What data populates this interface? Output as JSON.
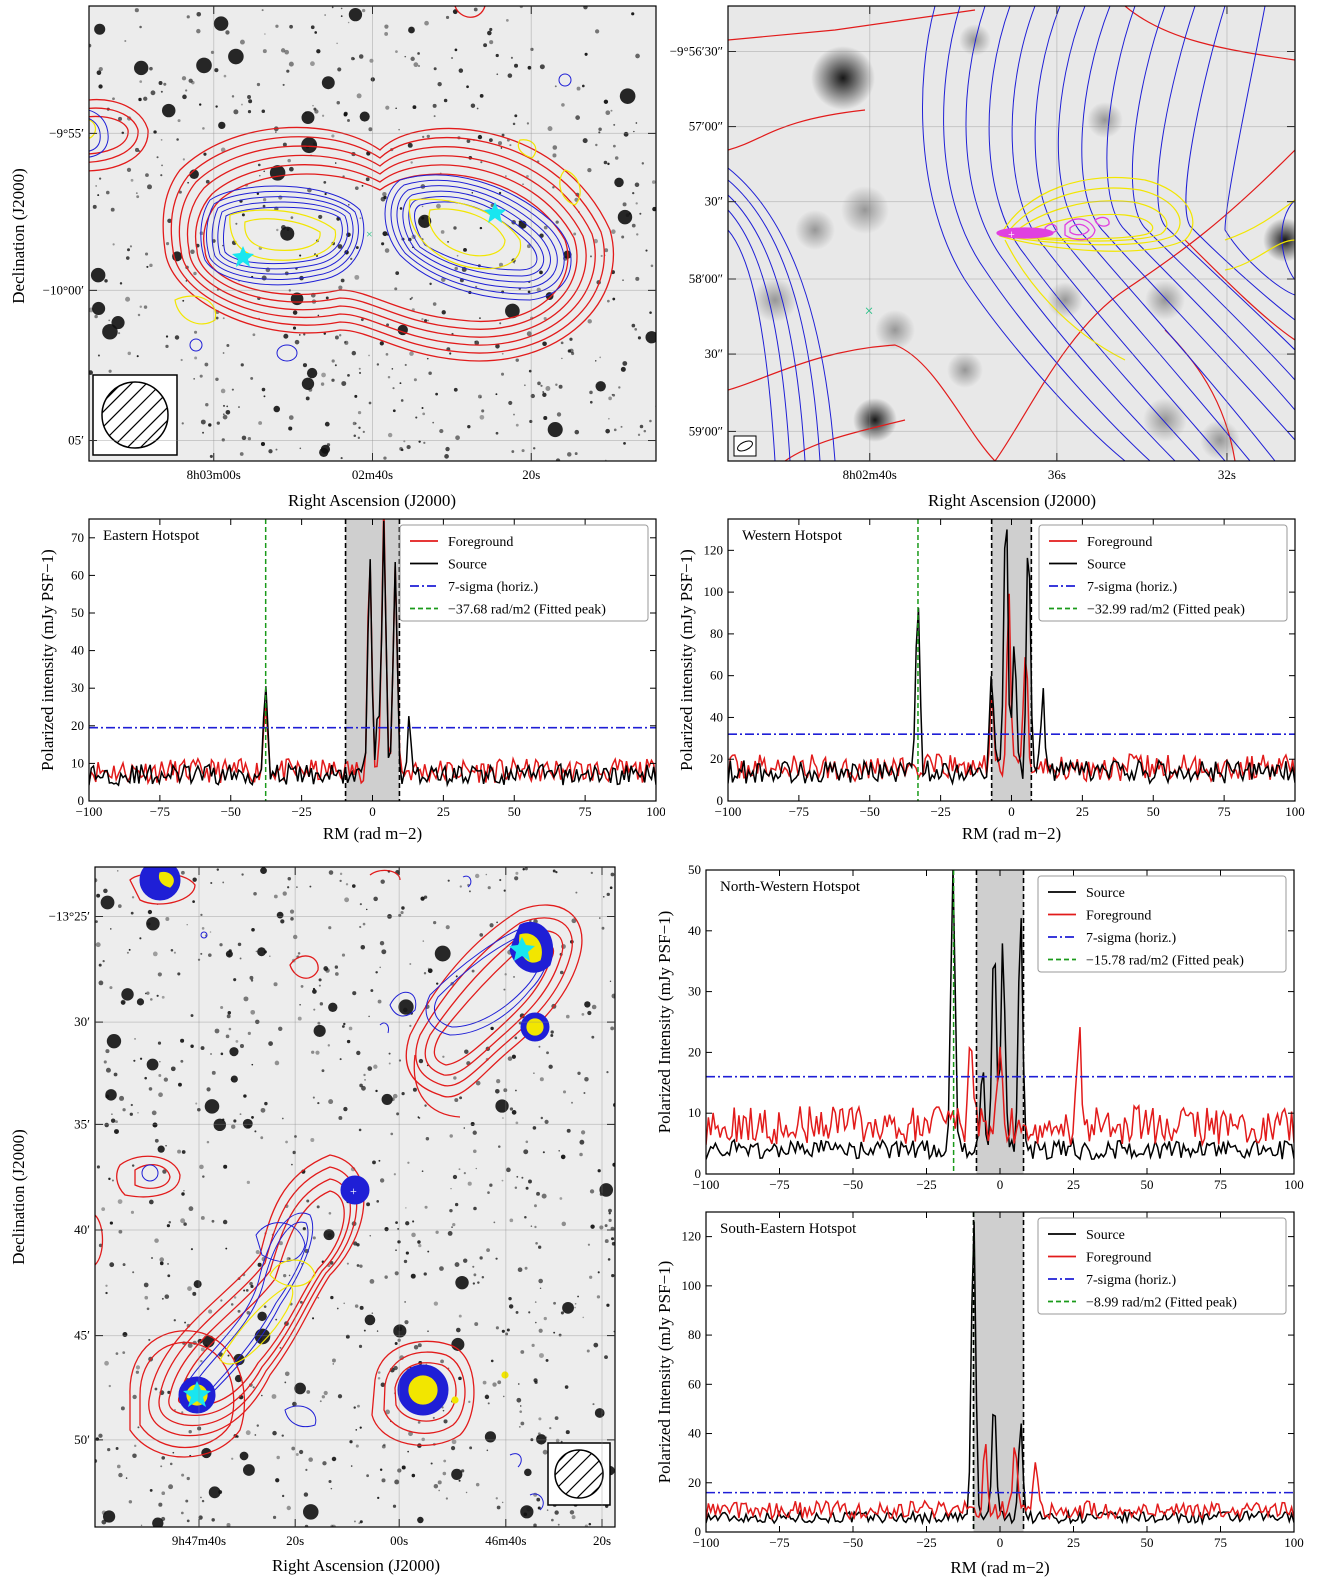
{
  "colors": {
    "red": "#e21b1b",
    "black": "#000000",
    "blue": "#1f1fd6",
    "green": "#1a9a1a",
    "yellow": "#f2e600",
    "cyan": "#19e6f0",
    "magenta": "#e040e0"
  },
  "images": [
    {
      "id": "img-a",
      "xlabel": "Right Ascension (J2000)",
      "ylabel": "Declination (J2000)",
      "xticks": [
        "8h03m00s",
        "02m40s",
        "20s"
      ],
      "yticks": [
        "−9°55′",
        "−10°00′",
        "05′"
      ]
    },
    {
      "id": "img-b",
      "xlabel": "Right Ascension (J2000)",
      "ylabel": "",
      "xticks": [
        "8h02m40s",
        "36s",
        "32s"
      ],
      "yticks": [
        "−9°56′30″",
        "57′00″",
        "30″",
        "58′00″",
        "30″",
        "59′00″"
      ]
    },
    {
      "id": "img-c",
      "xlabel": "Right Ascension (J2000)",
      "ylabel": "Declination (J2000)",
      "xticks": [
        "9h47m40s",
        "20s",
        "00s",
        "46m40s",
        "20s"
      ],
      "yticks": [
        "−13°25′",
        "30′",
        "35′",
        "40′",
        "45′",
        "50′"
      ]
    }
  ],
  "chart_data": [
    {
      "id": "plot-east",
      "type": "line",
      "title": "Eastern Hotspot",
      "xlabel": "RM (rad m−2)",
      "ylabel": "Polarized intensity (mJy PSF−1)",
      "xlim": [
        -100,
        100
      ],
      "ylim": [
        0,
        75
      ],
      "yticks": [
        0,
        10,
        20,
        30,
        40,
        50,
        60,
        70
      ],
      "xticks": [
        -100,
        -75,
        -50,
        -25,
        0,
        25,
        50,
        75,
        100
      ],
      "legend_position": "top-right",
      "sigma_level": 19.5,
      "fitted_peak": -37.68,
      "shaded_range": [
        -9.5,
        9.5
      ],
      "series": [
        {
          "name": "Foreground",
          "color": "#e21b1b",
          "base": 8,
          "peaks": [
            [
              -1,
              58
            ],
            [
              4,
              70
            ],
            [
              8,
              56
            ],
            [
              -37.68,
              18
            ]
          ]
        },
        {
          "name": "Source",
          "color": "#000000",
          "base": 7,
          "peaks": [
            [
              -37.68,
              26
            ],
            [
              -1,
              58
            ],
            [
              4,
              66
            ],
            [
              8,
              58
            ],
            [
              2,
              14
            ],
            [
              13,
              15
            ]
          ]
        }
      ],
      "legend": [
        "Foreground",
        "Source",
        "7-sigma (horiz.)",
        "−37.68 rad/m2 (Fitted peak)"
      ]
    },
    {
      "id": "plot-west",
      "type": "line",
      "title": "Western Hotspot",
      "xlabel": "RM (rad m−2)",
      "ylabel": "Polarized intensity (mJy PSF−1)",
      "xlim": [
        -100,
        100
      ],
      "ylim": [
        0,
        135
      ],
      "yticks": [
        0,
        20,
        40,
        60,
        80,
        100,
        120
      ],
      "xticks": [
        -100,
        -75,
        -50,
        -25,
        0,
        25,
        50,
        75,
        100
      ],
      "legend_position": "top-right",
      "sigma_level": 32,
      "fitted_peak": -32.99,
      "shaded_range": [
        -7,
        7
      ],
      "series": [
        {
          "name": "Foreground",
          "color": "#e21b1b",
          "base": 16,
          "peaks": [
            [
              -1,
              80
            ],
            [
              5,
              60
            ],
            [
              -7,
              30
            ]
          ]
        },
        {
          "name": "Source",
          "color": "#000000",
          "base": 14,
          "peaks": [
            [
              -32.99,
              87
            ],
            [
              -2,
              130
            ],
            [
              1,
              60
            ],
            [
              6,
              114
            ],
            [
              -7,
              48
            ],
            [
              11,
              38
            ]
          ]
        }
      ],
      "legend": [
        "Foreground",
        "Source",
        "7-sigma (horiz.)",
        "−32.99 rad/m2 (Fitted peak)"
      ]
    },
    {
      "id": "plot-nw",
      "type": "line",
      "title": "North-Western Hotspot",
      "xlabel": "",
      "ylabel": "Polarized Intensity (mJy PSF−1)",
      "xlim": [
        -100,
        100
      ],
      "ylim": [
        0,
        50
      ],
      "yticks": [
        0,
        10,
        20,
        30,
        40,
        50
      ],
      "xticks": [
        -100,
        -75,
        -50,
        -25,
        0,
        25,
        50,
        75,
        100
      ],
      "legend_position": "top-right",
      "sigma_level": 16,
      "fitted_peak": -15.78,
      "shaded_range": [
        -8,
        8
      ],
      "series": [
        {
          "name": "Source",
          "color": "#000000",
          "base": 4,
          "peaks": [
            [
              -16,
              46
            ],
            [
              -2,
              36
            ],
            [
              1,
              35
            ],
            [
              7,
              40
            ],
            [
              -6,
              14
            ]
          ]
        },
        {
          "name": "Foreground",
          "color": "#e21b1b",
          "base": 8,
          "peaks": [
            [
              -10,
              16
            ],
            [
              0,
              15
            ],
            [
              27,
              17
            ]
          ]
        }
      ],
      "legend": [
        "Source",
        "Foreground",
        "7-sigma (horiz.)",
        "−15.78 rad/m2 (Fitted peak)"
      ]
    },
    {
      "id": "plot-se",
      "type": "line",
      "title": "South-Eastern Hotspot",
      "xlabel": "RM (rad m−2)",
      "ylabel": "Polarized Intensity (mJy PSF−1)",
      "xlim": [
        -100,
        100
      ],
      "ylim": [
        0,
        130
      ],
      "yticks": [
        0,
        20,
        40,
        60,
        80,
        100,
        120
      ],
      "xticks": [
        -100,
        -75,
        -50,
        -25,
        0,
        25,
        50,
        75,
        100
      ],
      "legend_position": "top-right",
      "sigma_level": 16,
      "fitted_peak": -8.99,
      "shaded_range": [
        -9,
        8
      ],
      "series": [
        {
          "name": "Source",
          "color": "#000000",
          "base": 6,
          "peaks": [
            [
              -8.99,
              124
            ],
            [
              -2,
              50
            ],
            [
              7,
              40
            ]
          ]
        },
        {
          "name": "Foreground",
          "color": "#e21b1b",
          "base": 9,
          "peaks": [
            [
              -5,
              26
            ],
            [
              5,
              25
            ],
            [
              12,
              18
            ]
          ]
        }
      ],
      "legend": [
        "Source",
        "Foreground",
        "7-sigma (horiz.)",
        "−8.99 rad/m2 (Fitted peak)"
      ]
    }
  ]
}
